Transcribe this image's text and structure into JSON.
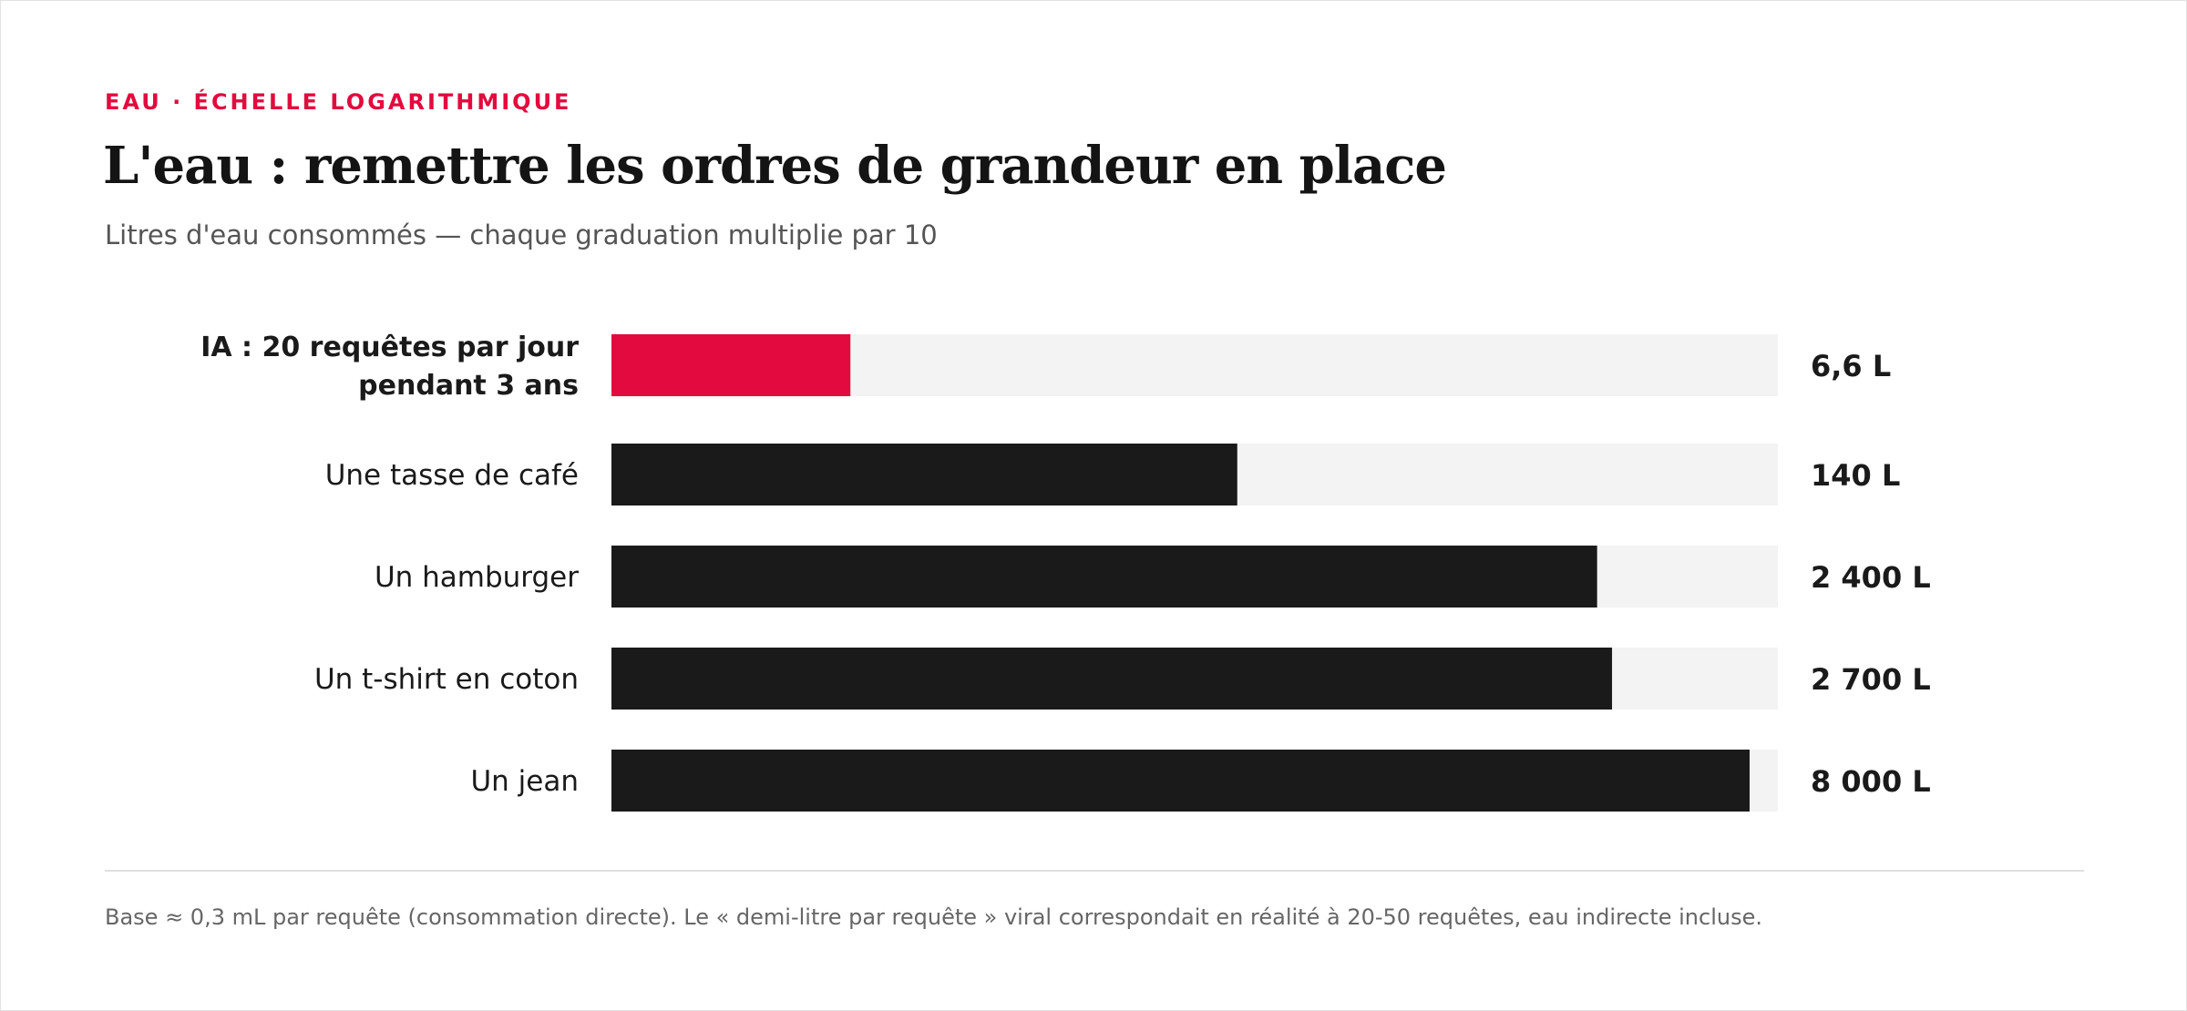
{
  "header": {
    "eyebrow": "EAU · ÉCHELLE LOGARITHMIQUE",
    "title": "L'eau : remettre les ordres de grandeur en place",
    "subtitle": "Litres d'eau consommés — chaque graduation multiplie par 10"
  },
  "footnote": "Base ≈ 0,3 mL par requête (consommation directe). Le « demi-litre par requête » viral correspondait en réalité à 20-50 requêtes, eau indirecte incluse.",
  "colors": {
    "accent": "#e20a3e",
    "bar": "#1a1a1a",
    "track": "#f3f3f3"
  },
  "chart_data": {
    "type": "bar",
    "orientation": "horizontal",
    "scale": "log",
    "unit": "L",
    "xlim": [
      1,
      10000
    ],
    "grid": false,
    "legend": "none",
    "categories": [
      "IA : 20 requêtes par jour pendant 3 ans",
      "Une tasse de café",
      "Un hamburger",
      "Un t-shirt en coton",
      "Un jean"
    ],
    "category_lines": [
      [
        "IA : 20 requêtes par jour",
        "pendant 3 ans"
      ],
      [
        "Une tasse de café"
      ],
      [
        "Un hamburger"
      ],
      [
        "Un t-shirt en coton"
      ],
      [
        "Un jean"
      ]
    ],
    "values": [
      6.6,
      140,
      2400,
      2700,
      8000
    ],
    "value_labels": [
      "6,6 L",
      "140 L",
      "2 400 L",
      "2 700 L",
      "8 000 L"
    ],
    "highlight": [
      true,
      false,
      false,
      false,
      false
    ]
  }
}
